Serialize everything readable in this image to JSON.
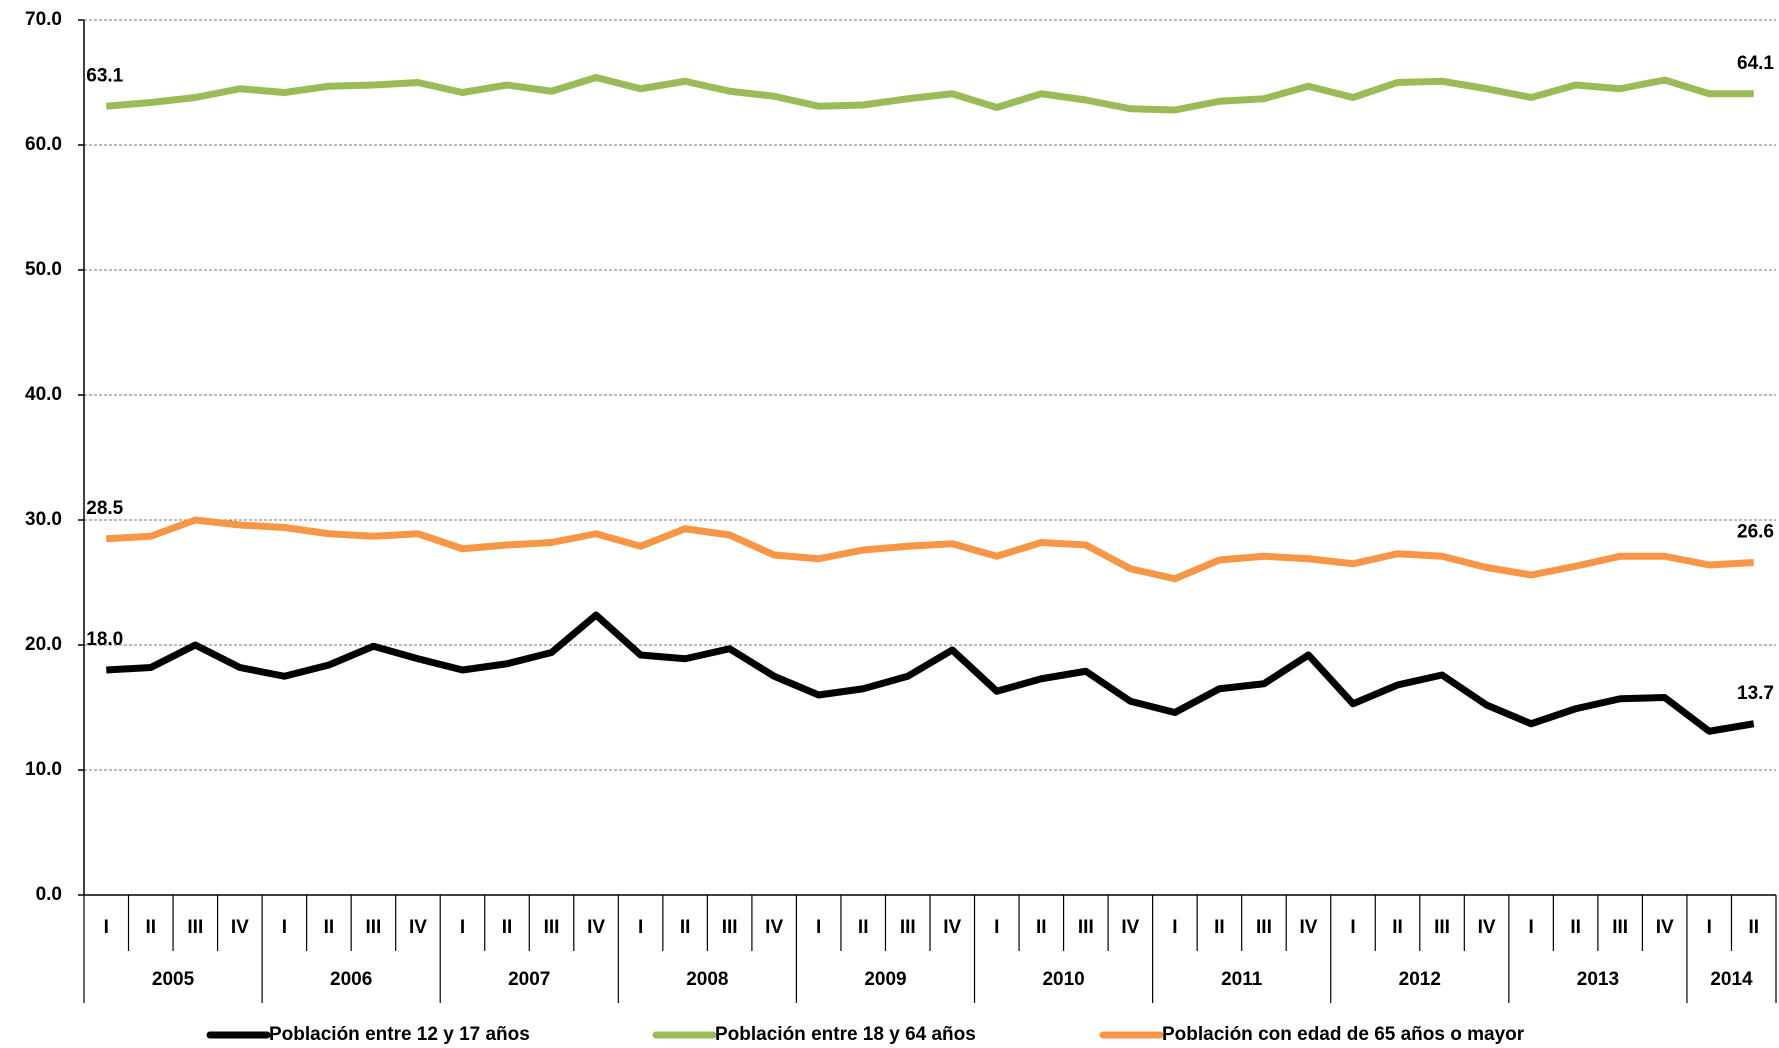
{
  "chart_data": {
    "type": "line",
    "categories": [
      "I",
      "II",
      "III",
      "IV",
      "I",
      "II",
      "III",
      "IV",
      "I",
      "II",
      "III",
      "IV",
      "I",
      "II",
      "III",
      "IV",
      "I",
      "II",
      "III",
      "IV",
      "I",
      "II",
      "III",
      "IV",
      "I",
      "II",
      "III",
      "IV",
      "I",
      "II",
      "III",
      "IV",
      "I",
      "II",
      "III",
      "IV",
      "I",
      "II"
    ],
    "year_groups": [
      {
        "label": "2005",
        "count": 4
      },
      {
        "label": "2006",
        "count": 4
      },
      {
        "label": "2007",
        "count": 4
      },
      {
        "label": "2008",
        "count": 4
      },
      {
        "label": "2009",
        "count": 4
      },
      {
        "label": "2010",
        "count": 4
      },
      {
        "label": "2011",
        "count": 4
      },
      {
        "label": "2012",
        "count": 4
      },
      {
        "label": "2013",
        "count": 4
      },
      {
        "label": "2014",
        "count": 2
      }
    ],
    "series": [
      {
        "name": "Población entre 12 y 17 años",
        "color": "#000000",
        "values": [
          18.0,
          18.2,
          20.0,
          18.2,
          17.5,
          18.4,
          19.9,
          18.9,
          18.0,
          18.5,
          19.4,
          22.4,
          19.2,
          18.9,
          19.7,
          17.5,
          16.0,
          16.5,
          17.5,
          19.6,
          16.3,
          17.3,
          17.9,
          15.5,
          14.6,
          16.5,
          16.9,
          19.2,
          15.3,
          16.8,
          17.6,
          15.2,
          13.7,
          14.9,
          15.7,
          15.8,
          13.1,
          13.7
        ],
        "value_labels": [
          "18.0",
          null,
          null,
          null,
          null,
          null,
          null,
          null,
          null,
          null,
          null,
          null,
          null,
          null,
          null,
          null,
          null,
          null,
          null,
          null,
          null,
          null,
          null,
          null,
          null,
          null,
          null,
          null,
          null,
          null,
          null,
          null,
          null,
          null,
          null,
          null,
          null,
          "13.7"
        ]
      },
      {
        "name": "Población entre 18 y 64 años",
        "color": "#9bbb59",
        "values": [
          63.1,
          63.4,
          63.8,
          64.5,
          64.2,
          64.7,
          64.8,
          65.0,
          64.2,
          64.8,
          64.3,
          65.4,
          64.5,
          65.1,
          64.3,
          63.9,
          63.1,
          63.2,
          63.7,
          64.1,
          63.0,
          64.1,
          63.6,
          62.9,
          62.8,
          63.5,
          63.7,
          64.7,
          63.8,
          65.0,
          65.1,
          64.5,
          63.8,
          64.8,
          64.5,
          65.2,
          64.1,
          64.1
        ],
        "value_labels": [
          "63.1",
          null,
          null,
          null,
          null,
          null,
          null,
          null,
          null,
          null,
          null,
          null,
          null,
          null,
          null,
          null,
          null,
          null,
          null,
          null,
          null,
          null,
          null,
          null,
          null,
          null,
          null,
          null,
          null,
          null,
          null,
          null,
          null,
          null,
          null,
          null,
          null,
          "64.1"
        ]
      },
      {
        "name": "Población con edad de 65 años o mayor",
        "color": "#f79646",
        "values": [
          28.5,
          28.7,
          30.0,
          29.6,
          29.4,
          28.9,
          28.7,
          28.9,
          27.7,
          28.0,
          28.2,
          28.9,
          27.9,
          29.3,
          28.8,
          27.2,
          26.9,
          27.6,
          27.9,
          28.1,
          27.1,
          28.2,
          28.0,
          26.1,
          25.3,
          26.8,
          27.1,
          26.9,
          26.5,
          27.3,
          27.1,
          26.2,
          25.6,
          26.3,
          27.1,
          27.1,
          26.4,
          26.6
        ],
        "value_labels": [
          "28.5",
          null,
          null,
          null,
          null,
          null,
          null,
          null,
          null,
          null,
          null,
          null,
          null,
          null,
          null,
          null,
          null,
          null,
          null,
          null,
          null,
          null,
          null,
          null,
          null,
          null,
          null,
          null,
          null,
          null,
          null,
          null,
          null,
          null,
          null,
          null,
          null,
          "26.6"
        ]
      }
    ],
    "ylim": [
      0,
      70
    ],
    "yticks": [
      {
        "value": 0,
        "label": "0.0"
      },
      {
        "value": 10,
        "label": "10.0"
      },
      {
        "value": 20,
        "label": "20.0"
      },
      {
        "value": 30,
        "label": "30.0"
      },
      {
        "value": 40,
        "label": "40.0"
      },
      {
        "value": 50,
        "label": "50.0"
      },
      {
        "value": 60,
        "label": "60.0"
      },
      {
        "value": 70,
        "label": "70.0"
      }
    ],
    "grid": true,
    "legend": "bottom"
  }
}
